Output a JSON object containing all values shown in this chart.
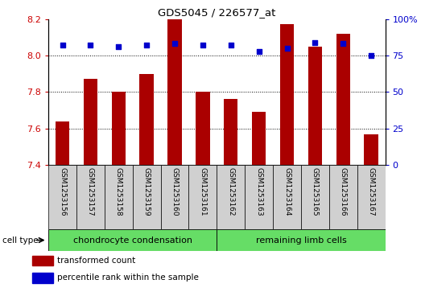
{
  "title": "GDS5045 / 226577_at",
  "samples": [
    "GSM1253156",
    "GSM1253157",
    "GSM1253158",
    "GSM1253159",
    "GSM1253160",
    "GSM1253161",
    "GSM1253162",
    "GSM1253163",
    "GSM1253164",
    "GSM1253165",
    "GSM1253166",
    "GSM1253167"
  ],
  "transformed_count": [
    7.64,
    7.87,
    7.8,
    7.9,
    8.2,
    7.8,
    7.76,
    7.69,
    8.17,
    8.05,
    8.12,
    7.57
  ],
  "percentile_rank": [
    82,
    82,
    81,
    82,
    83,
    82,
    82,
    78,
    80,
    84,
    83,
    75
  ],
  "ylim_left": [
    7.4,
    8.2
  ],
  "ylim_right": [
    0,
    100
  ],
  "yticks_left": [
    7.4,
    7.6,
    7.8,
    8.0,
    8.2
  ],
  "yticks_right": [
    0,
    25,
    50,
    75,
    100
  ],
  "grid_values": [
    7.6,
    7.8,
    8.0
  ],
  "bar_color": "#aa0000",
  "dot_color": "#0000cc",
  "bar_width": 0.5,
  "cell_type_groups": [
    {
      "label": "chondrocyte condensation",
      "start": 0,
      "end": 6,
      "color": "#66dd66"
    },
    {
      "label": "remaining limb cells",
      "start": 6,
      "end": 12,
      "color": "#66dd66"
    }
  ],
  "cell_type_label": "cell type",
  "legend_items": [
    {
      "label": "transformed count",
      "color": "#aa0000"
    },
    {
      "label": "percentile rank within the sample",
      "color": "#0000cc"
    }
  ],
  "label_bg": "#d0d0d0",
  "plot_bg": "white"
}
